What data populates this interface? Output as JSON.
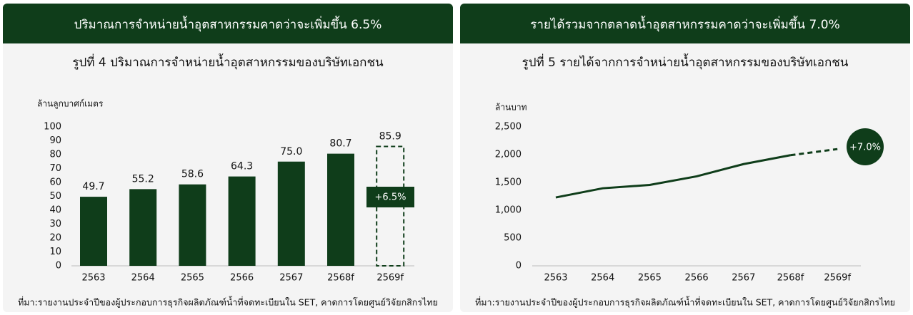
{
  "chart_data": [
    {
      "type": "bar",
      "header": "ปริมาณการจำหน่ายน้ำอุตสาหกรรมคาดว่าจะเพิ่มขึ้น 6.5%",
      "title": "รูปที่ 4 ปริมาณการจำหน่ายน้ำอุตสาหกรรมของบริษัทเอกชน",
      "y_label": "ล้านลูกบาศก์เมตร",
      "categories": [
        "2563",
        "2564",
        "2565",
        "2566",
        "2567",
        "2568f",
        "2569f"
      ],
      "values": [
        49.7,
        55.2,
        58.6,
        64.3,
        75.0,
        80.7,
        85.9
      ],
      "value_labels": [
        "49.7",
        "55.2",
        "58.6",
        "64.3",
        "75.0",
        "80.7",
        "85.9"
      ],
      "dashed": [
        false,
        false,
        false,
        false,
        false,
        false,
        true
      ],
      "color": "#0f3d1a",
      "annotation": "+6.5%",
      "ylim": [
        0,
        100
      ],
      "yticks": [
        0,
        10,
        20,
        30,
        40,
        50,
        60,
        70,
        80,
        90,
        100
      ],
      "source": "ที่มา:รายงานประจำปีของผู้ประกอบการธุรกิจผลิตภัณฑ์น้ำที่จดทะเบียนใน SET, คาดการโดยศูนย์วิจัยกสิกรไทย"
    },
    {
      "type": "line",
      "header": "รายได้รวมจากตลาดน้ำอุตสาหกรรมคาดว่าจะเพิ่มขึ้น 7.0%",
      "title": "รูปที่ 5 รายได้จากการจำหน่ายน้ำอุตสาหกรรมของบริษัทเอกชน",
      "y_label": "ล้านบาท",
      "categories": [
        "2563",
        "2564",
        "2565",
        "2566",
        "2567",
        "2568f",
        "2569f"
      ],
      "values": [
        1230,
        1395,
        1455,
        1610,
        1830,
        1990,
        2100
      ],
      "dashed": [
        false,
        false,
        false,
        false,
        false,
        false,
        true
      ],
      "color": "#0f3d1a",
      "annotation": "+7.0%",
      "ylim": [
        0,
        2500
      ],
      "yticks": [
        0,
        500,
        {
          "value": 1000,
          "label": "1,000"
        },
        {
          "value": 1500,
          "label": "1,500"
        },
        {
          "value": 2000,
          "label": "2,000"
        },
        {
          "value": 2500,
          "label": "2,500"
        }
      ],
      "source": "ที่มา:รายงานประจำปีของผู้ประกอบการธุรกิจผลิตภัณฑ์น้ำที่จดทะเบียนใน SET, คาดการโดยศูนย์วิจัยกสิกรไทย"
    }
  ]
}
